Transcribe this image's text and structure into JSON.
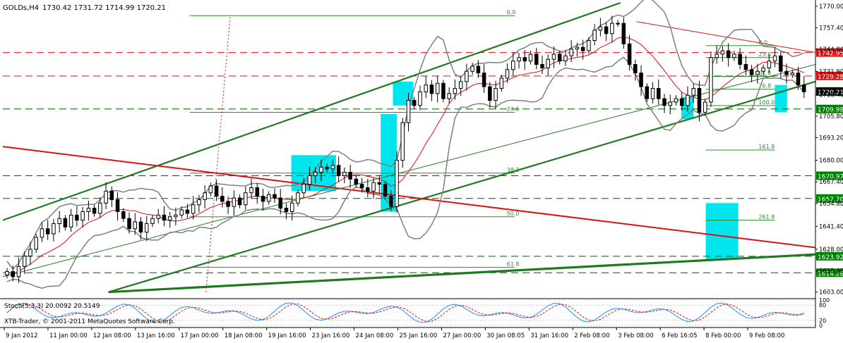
{
  "header": {
    "symbol_title": "GOLDs,H4",
    "ohlc": "1730.42 1731.72 1714.99 1720.21"
  },
  "indicator": {
    "label": "Stoch(5,3,3) 20.0092 20.5149",
    "levels": [
      "100",
      "80",
      "20",
      "0"
    ]
  },
  "copyright": "XTB-Trader, © 2001-2011 MetaQuotes Software Corp.",
  "colors": {
    "background": "#ffffff",
    "bull_candle": "#ffffff",
    "bear_candle": "#000000",
    "channel_green": "#1f7a1f",
    "trend_red": "#dd1111",
    "bollinger": "#7f7f7f",
    "highlight": "#00e5ee",
    "stoch_main": "#1e90ff",
    "stoch_signal": "#dd1111",
    "price_badge_red": "#dd1111",
    "price_badge_green": "#008000",
    "price_badge_current": "#000000"
  },
  "chart_data": {
    "type": "candlestick",
    "title": "GOLDs,H4",
    "ylim": [
      1600.0,
      1772.0
    ],
    "y_ticks": [
      "1770.00",
      "1757.40",
      "1744.80",
      "1731.90",
      "1718.40",
      "1705.80",
      "1693.20",
      "1680.00",
      "1667.40",
      "1654.80",
      "1641.40",
      "1628.00",
      "1615.40",
      "1603.00"
    ],
    "x_ticks": [
      "9 Jan 2012",
      "11 Jan 00:00",
      "12 Jan 08:00",
      "13 Jan 16:00",
      "17 Jan 00:00",
      "18 Jan 08:00",
      "19 Jan 16:00",
      "23 Jan 16:00",
      "24 Jan 08:00",
      "25 Jan 16:00",
      "27 Jan 00:00",
      "30 Jan 08:05",
      "31 Jan 16:00",
      "2 Feb 08:00",
      "3 Feb 08:00",
      "6 Feb 16:05",
      "8 Feb 00:00",
      "9 Feb 08:00"
    ],
    "closes": [
      1615,
      1612,
      1618,
      1624,
      1628,
      1635,
      1640,
      1637,
      1643,
      1646,
      1641,
      1648,
      1645,
      1650,
      1652,
      1649,
      1655,
      1662,
      1657,
      1650,
      1646,
      1640,
      1644,
      1638,
      1643,
      1646,
      1648,
      1645,
      1647,
      1648,
      1651,
      1649,
      1654,
      1657,
      1661,
      1665,
      1659,
      1656,
      1653,
      1658,
      1654,
      1661,
      1664,
      1659,
      1656,
      1660,
      1658,
      1652,
      1650,
      1655,
      1661,
      1666,
      1671,
      1673,
      1676,
      1675,
      1677,
      1671,
      1673,
      1669,
      1666,
      1664,
      1662,
      1667,
      1666,
      1659,
      1653,
      1680,
      1702,
      1715,
      1712,
      1720,
      1724,
      1719,
      1725,
      1716,
      1719,
      1722,
      1726,
      1732,
      1735,
      1731,
      1723,
      1715,
      1722,
      1728,
      1733,
      1738,
      1740,
      1738,
      1742,
      1736,
      1734,
      1739,
      1742,
      1738,
      1741,
      1745,
      1746,
      1744,
      1750,
      1756,
      1758,
      1754,
      1760,
      1760,
      1748,
      1736,
      1731,
      1723,
      1716,
      1722,
      1716,
      1712,
      1714,
      1716,
      1712,
      1718,
      1722,
      1708,
      1714,
      1740,
      1742,
      1744,
      1740,
      1742,
      1736,
      1733,
      1730,
      1732,
      1734,
      1738,
      1741,
      1732,
      1730,
      1731,
      1724,
      1720
    ],
    "horizontal_levels": [
      {
        "price": 1742.95,
        "label": "1742.95",
        "style": "red-dashed"
      },
      {
        "price": 1729.28,
        "label": "1729.28",
        "style": "red-dashed"
      },
      {
        "price": 1720.21,
        "label": "1720.21",
        "style": "current"
      },
      {
        "price": 1709.98,
        "label": "1709.98",
        "style": "green-dashed"
      },
      {
        "price": 1670.97,
        "label": "1670.97",
        "style": "green-dashed"
      },
      {
        "price": 1657.7,
        "label": "1657.70",
        "style": "green-dashed"
      },
      {
        "price": 1623.92,
        "label": "1623.92",
        "style": "green-dashed"
      },
      {
        "price": 1614.28,
        "label": "1614.28",
        "style": "green-dashed"
      }
    ],
    "fibo_left": [
      {
        "price": 1764.5,
        "label": "0.0"
      },
      {
        "price": 1708.0,
        "label": "23.6"
      },
      {
        "price": 1672.5,
        "label": "38.2"
      },
      {
        "price": 1647.0,
        "label": "50.0"
      },
      {
        "price": 1617.5,
        "label": "61.8"
      }
    ],
    "fibo_right": [
      {
        "price": 1747.0,
        "label": "0.0"
      },
      {
        "price": 1740.0,
        "label": "23.6"
      },
      {
        "price": 1729.0,
        "label": "61.8"
      },
      {
        "price": 1721.5,
        "label": "76.8"
      },
      {
        "price": 1712.0,
        "label": "100.0"
      },
      {
        "price": 1686.0,
        "label": "161.8"
      },
      {
        "price": 1645.0,
        "label": "261.8"
      }
    ]
  }
}
